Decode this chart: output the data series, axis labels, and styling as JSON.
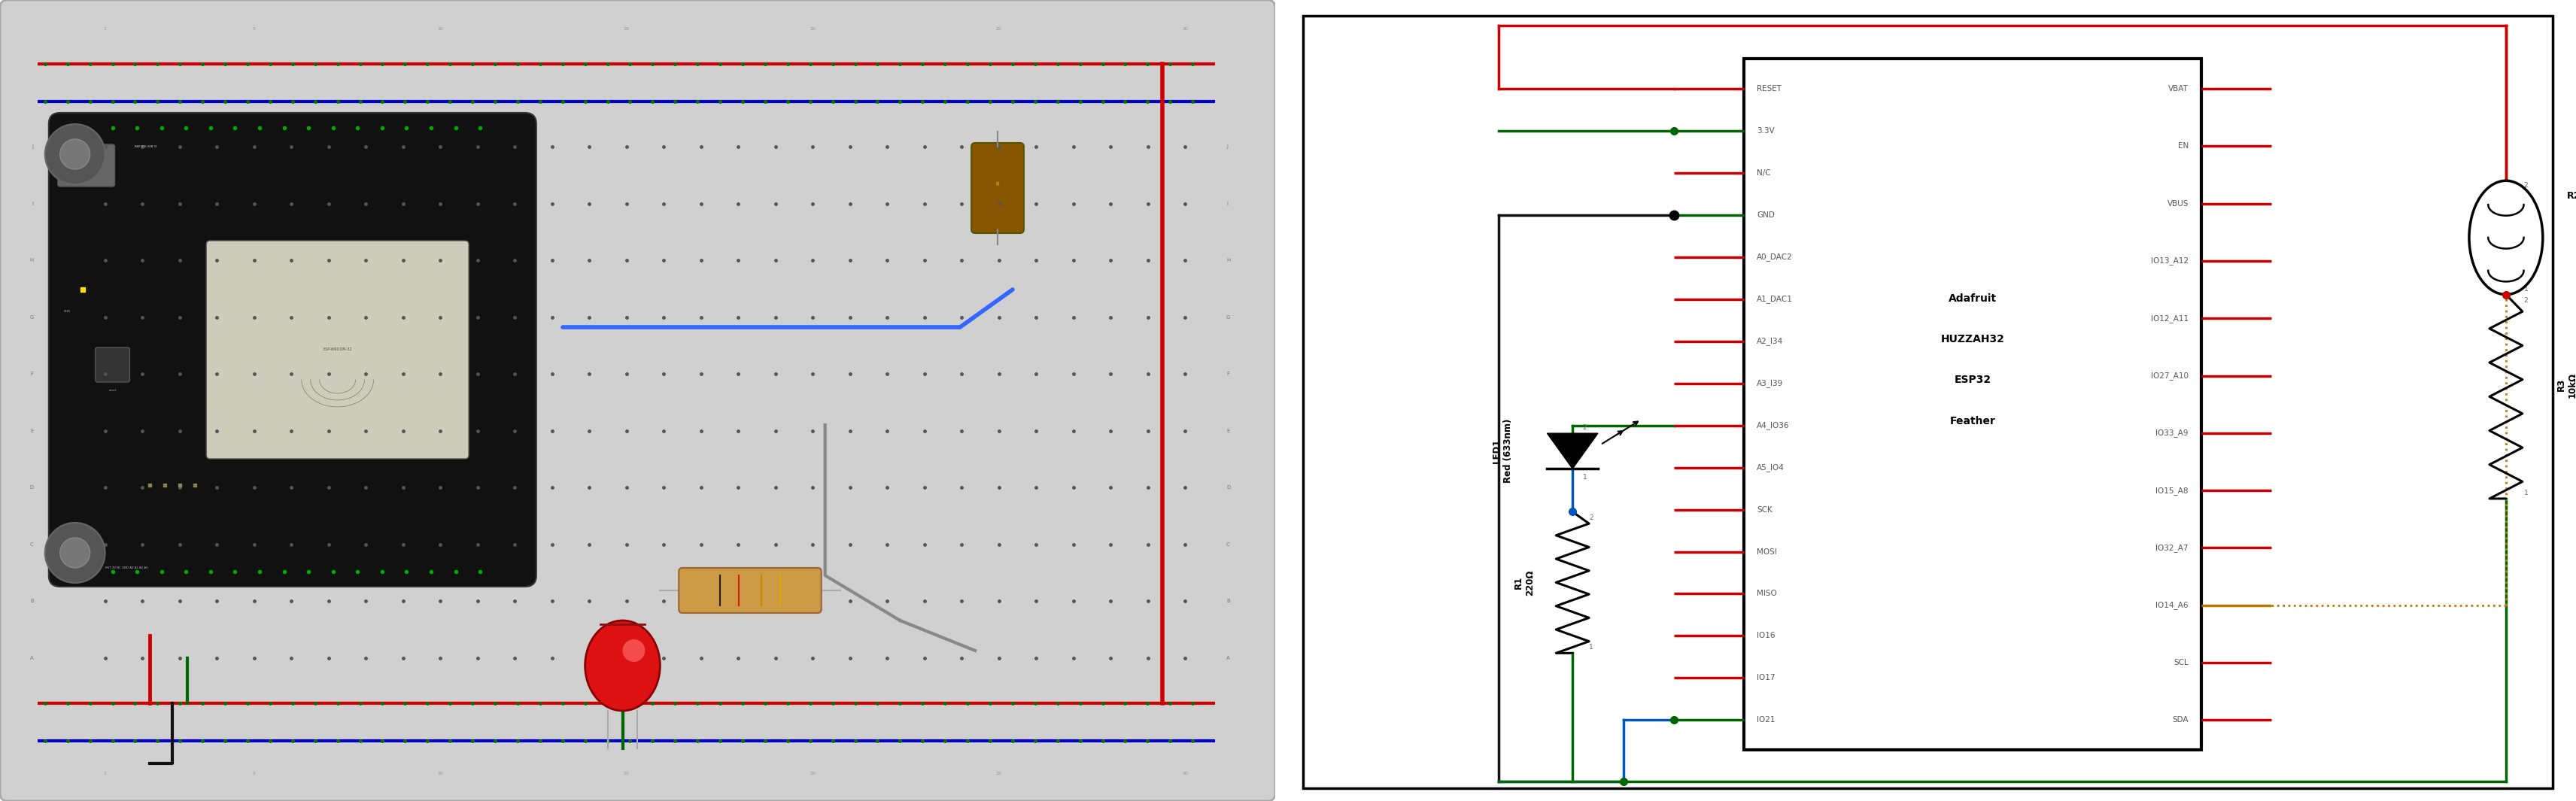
{
  "bg_white": "#ffffff",
  "bb_bg": "#d8d8d8",
  "bb_border": "#aaaaaa",
  "rail_red": "#cc0000",
  "rail_blue": "#0000cc",
  "hole_color": "#006600",
  "hole_dark": "#333333",
  "wire_red": "#cc0000",
  "wire_green": "#006600",
  "wire_blue": "#0055bb",
  "wire_brown_dot": "#bb7700",
  "wire_black": "#111111",
  "wire_gray": "#888888",
  "wire_teal": "#007777",
  "board_black": "#111111",
  "board_border": "#333333",
  "ic_label": [
    "Adafruit",
    "HUZZAH32",
    "ESP32",
    "Feather"
  ],
  "left_pins": [
    "RESET",
    "3.3V",
    "N/C",
    "GND",
    "A0_DAC2",
    "A1_DAC1",
    "A2_I34",
    "A3_I39",
    "A4_IO36",
    "A5_IO4",
    "SCK",
    "MOSI",
    "MISO",
    "IO16",
    "IO17",
    "IO21"
  ],
  "right_pins": [
    "VBAT",
    "EN",
    "VBUS",
    "IO13_A12",
    "IO12_A11",
    "IO27_A10",
    "IO33_A9",
    "IO15_A8",
    "IO32_A7",
    "IO14_A6",
    "SCL",
    "SDA"
  ],
  "green_left_pins": [
    "3.3V",
    "GND",
    "IO21"
  ],
  "brown_right_pins": [
    "IO14_A6"
  ],
  "resistor_r1": "R1\n220Ω",
  "resistor_r3": "R3\n10kΩ",
  "led_label": "LED1\nRed (633nm)"
}
